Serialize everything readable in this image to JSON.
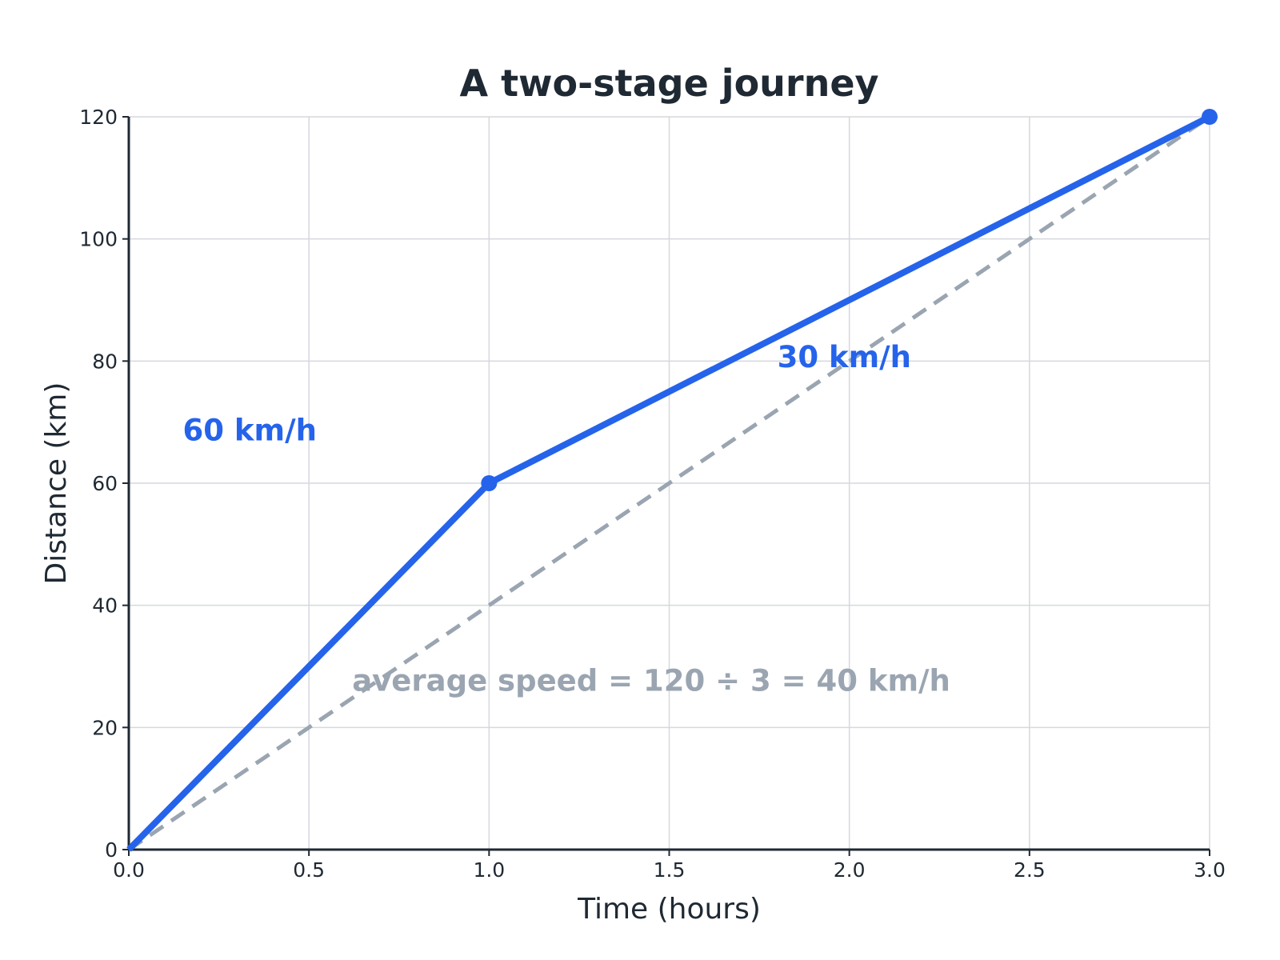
{
  "chart_data": {
    "type": "line",
    "title": "A two-stage journey",
    "xlabel": "Time (hours)",
    "ylabel": "Distance (km)",
    "xlim": [
      0,
      3
    ],
    "ylim": [
      0,
      120
    ],
    "xticks": [
      0.0,
      0.5,
      1.0,
      1.5,
      2.0,
      2.5,
      3.0
    ],
    "xtick_labels": [
      "0.0",
      "0.5",
      "1.0",
      "1.5",
      "2.0",
      "2.5",
      "3.0"
    ],
    "yticks": [
      0,
      20,
      40,
      60,
      80,
      100,
      120
    ],
    "ytick_labels": [
      "0",
      "20",
      "40",
      "60",
      "80",
      "100",
      "120"
    ],
    "grid": true,
    "series": [
      {
        "x": [
          0,
          1,
          3
        ],
        "y": [
          0,
          60,
          120
        ],
        "color": "#2563eb",
        "style": "solid",
        "markers_at": [
          1,
          3
        ]
      },
      {
        "x": [
          0,
          3
        ],
        "y": [
          0,
          120
        ],
        "color": "#9aa5b1",
        "style": "dashed"
      }
    ],
    "annotations": [
      {
        "text": "60 km/h",
        "x": 0.15,
        "y": 67,
        "color": "#2563eb"
      },
      {
        "text": "30 km/h",
        "x": 1.8,
        "y": 79,
        "color": "#2563eb"
      },
      {
        "text": "average speed = 120 ÷ 3 = 40 km/h",
        "x": 0.62,
        "y": 26,
        "color": "#9aa5b1"
      }
    ]
  }
}
